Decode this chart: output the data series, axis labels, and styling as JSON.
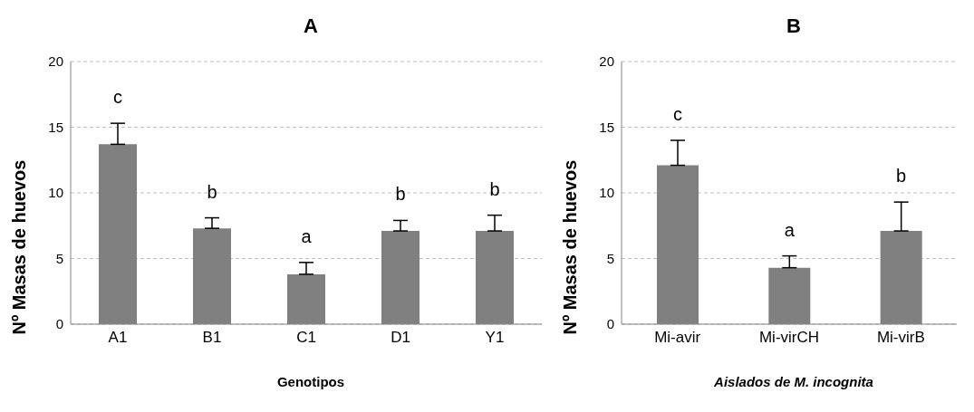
{
  "chart_data": [
    {
      "type": "bar",
      "title": "A",
      "xlabel": "Genotipos",
      "ylabel": "Nº Masas de huevos",
      "categories": [
        "A1",
        "B1",
        "C1",
        "D1",
        "Y1"
      ],
      "values": [
        13.7,
        7.3,
        3.8,
        7.1,
        7.1
      ],
      "errors": [
        1.6,
        0.8,
        0.9,
        0.8,
        1.2
      ],
      "color": "#808080",
      "ylim": [
        0,
        20
      ],
      "yticks": [
        0,
        5,
        10,
        15,
        20
      ],
      "grid": "y",
      "legend": false,
      "annotations": [
        "c",
        "b",
        "a",
        "b",
        "b"
      ]
    },
    {
      "type": "bar",
      "title": "B",
      "xlabel": "Aislados de M. incognita",
      "ylabel": "Nº Masas de huevos",
      "categories": [
        "Mi-avir",
        "Mi-virCH",
        "Mi-virB"
      ],
      "values": [
        12.1,
        4.3,
        7.1
      ],
      "errors": [
        1.9,
        0.9,
        2.2
      ],
      "color": "#808080",
      "ylim": [
        0,
        20
      ],
      "yticks": [
        0,
        5,
        10,
        15,
        20
      ],
      "grid": "y",
      "legend": false,
      "annotations": [
        "c",
        "a",
        "b"
      ]
    }
  ]
}
